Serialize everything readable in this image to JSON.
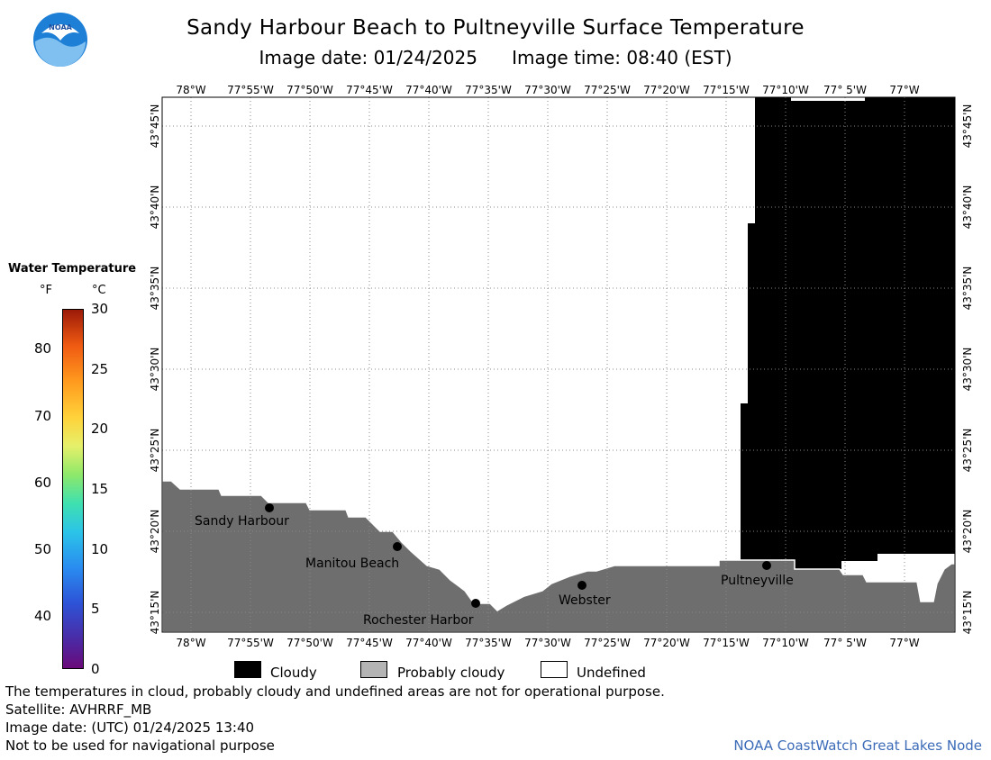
{
  "title": "Sandy Harbour Beach to Pultneyville Surface Temperature",
  "subtitle": {
    "date_label": "Image date:",
    "date": "01/24/2025",
    "time_label": "Image time:",
    "time": "08:40 (EST)"
  },
  "logo_text": "NOAA",
  "longitude_labels": [
    "78°W",
    "77°55'W",
    "77°50'W",
    "77°45'W",
    "77°40'W",
    "77°35'W",
    "77°30'W",
    "77°25'W",
    "77°20'W",
    "77°15'W",
    "77°10'W",
    "77° 5'W",
    "77°W"
  ],
  "latitude_labels": [
    "43°45'N",
    "43°40'N",
    "43°35'N",
    "43°30'N",
    "43°25'N",
    "43°20'N",
    "43°15'N"
  ],
  "places": [
    {
      "name": "Sandy Harbour"
    },
    {
      "name": "Manitou Beach"
    },
    {
      "name": "Rochester Harbor"
    },
    {
      "name": "Webster"
    },
    {
      "name": "Pultneyville"
    }
  ],
  "colorbar": {
    "title": "Water Temperature",
    "unit_f": "°F",
    "unit_c": "°C",
    "f_ticks": [
      "80",
      "70",
      "60",
      "50",
      "40"
    ],
    "c_ticks": [
      "30",
      "25",
      "20",
      "15",
      "10",
      "5",
      "0"
    ]
  },
  "legend": [
    {
      "label": "Cloudy",
      "color": "#000000"
    },
    {
      "label": "Probably cloudy",
      "color": "#b4b4b4"
    },
    {
      "label": "Undefined",
      "color": "#ffffff"
    }
  ],
  "footer": {
    "disclaimer": "The temperatures in cloud, probably cloudy and undefined areas are not for operational purpose.",
    "satellite": "Satellite: AVHRRF_MB",
    "utc_date": "Image date: (UTC) 01/24/2025  13:40",
    "nav_warning": "Not to be used for navigational purpose",
    "credit": "NOAA CoastWatch Great Lakes Node"
  },
  "colors": {
    "land": "#6e6e6e",
    "cloud": "#000000",
    "water_undefined": "#ffffff",
    "credit_text": "#3c6bb8",
    "logo_blue": "#1d7fd6"
  }
}
